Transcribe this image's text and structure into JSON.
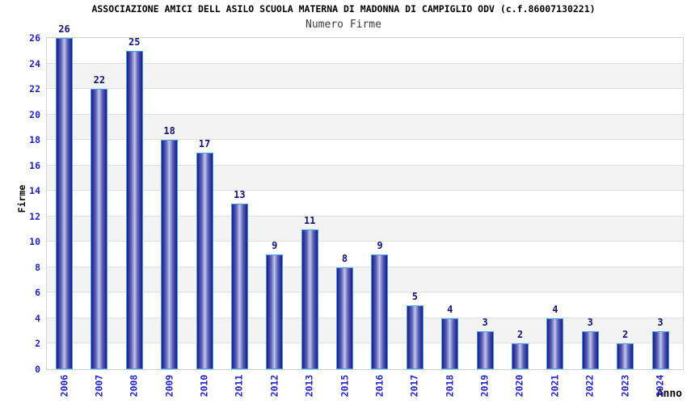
{
  "chart_data": {
    "type": "bar",
    "title": "ASSOCIAZIONE AMICI DELL ASILO SCUOLA MATERNA DI MADONNA DI CAMPIGLIO ODV (c.f.86007130221)",
    "subtitle": "Numero Firme",
    "xlabel": "Anno",
    "ylabel": "Firme",
    "categories": [
      "2006",
      "2007",
      "2008",
      "2009",
      "2010",
      "2011",
      "2012",
      "2013",
      "2015",
      "2016",
      "2017",
      "2018",
      "2019",
      "2020",
      "2021",
      "2022",
      "2023",
      "2024"
    ],
    "values": [
      26,
      22,
      25,
      18,
      17,
      13,
      9,
      11,
      8,
      9,
      5,
      4,
      3,
      2,
      4,
      3,
      2,
      3
    ],
    "ylim": [
      0,
      26
    ],
    "ytick_step": 2,
    "grid": "horizontal alternating bands every 2 units, light gray lines at even values",
    "legend": "none",
    "colors": {
      "bar_edge": "#43a0e8",
      "bar_dark": "#18187c",
      "bar_mid": "#5a62b4",
      "bar_light": "#c2c8ee",
      "tick_label": "#2323cc",
      "value_label": "#14147e",
      "title": "#000000",
      "subtitle": "#3c3c3c",
      "band": "#f3f3f3",
      "gridline": "#e0e0e0",
      "frame": "#d2d2d2",
      "background": "#ffffff"
    }
  }
}
